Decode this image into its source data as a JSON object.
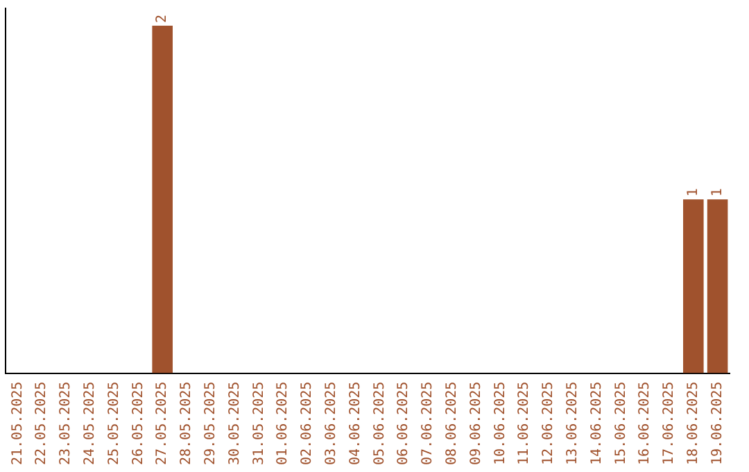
{
  "chart_data": {
    "type": "bar",
    "categories": [
      "21.05.2025",
      "22.05.2025",
      "23.05.2025",
      "24.05.2025",
      "25.05.2025",
      "26.05.2025",
      "27.05.2025",
      "28.05.2025",
      "29.05.2025",
      "30.05.2025",
      "31.05.2025",
      "01.06.2025",
      "02.06.2025",
      "03.06.2025",
      "04.06.2025",
      "05.06.2025",
      "06.06.2025",
      "07.06.2025",
      "08.06.2025",
      "09.06.2025",
      "10.06.2025",
      "11.06.2025",
      "12.06.2025",
      "13.06.2025",
      "14.06.2025",
      "15.06.2025",
      "16.06.2025",
      "17.06.2025",
      "18.06.2025",
      "19.06.2025"
    ],
    "values": [
      0,
      0,
      0,
      0,
      0,
      0,
      2,
      0,
      0,
      0,
      0,
      0,
      0,
      0,
      0,
      0,
      0,
      0,
      0,
      0,
      0,
      0,
      0,
      0,
      0,
      0,
      0,
      0,
      1,
      1
    ],
    "value_labels": [
      null,
      null,
      null,
      null,
      null,
      null,
      "2",
      null,
      null,
      null,
      null,
      null,
      null,
      null,
      null,
      null,
      null,
      null,
      null,
      null,
      null,
      null,
      null,
      null,
      null,
      null,
      null,
      null,
      "1",
      "1"
    ],
    "color": "#a0522d",
    "ylim": [
      0,
      2.1
    ],
    "tick_labels": "x",
    "grid": false,
    "legend": false
  }
}
